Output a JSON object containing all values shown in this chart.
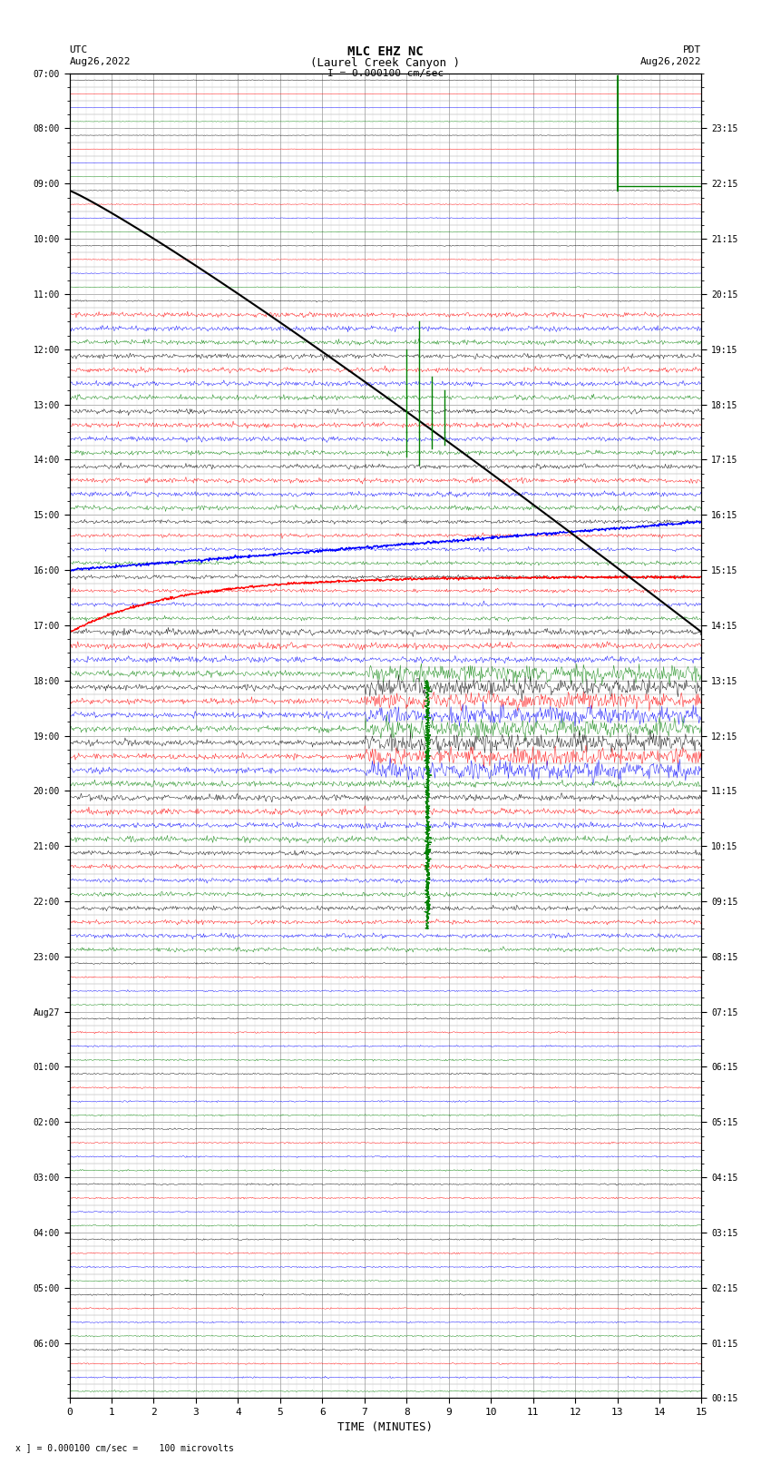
{
  "title_line1": "MLC EHZ NC",
  "title_line2": "(Laurel Creek Canyon )",
  "title_line3": "I = 0.000100 cm/sec",
  "left_label_line1": "UTC",
  "left_label_line2": "Aug26,2022",
  "right_label_line1": "PDT",
  "right_label_line2": "Aug26,2022",
  "bottom_label": "TIME (MINUTES)",
  "bottom_note": "x ] = 0.000100 cm/sec =    100 microvolts",
  "background_color": "#ffffff",
  "total_rows": 96,
  "colors_cycle": [
    "black",
    "red",
    "blue",
    "green"
  ]
}
